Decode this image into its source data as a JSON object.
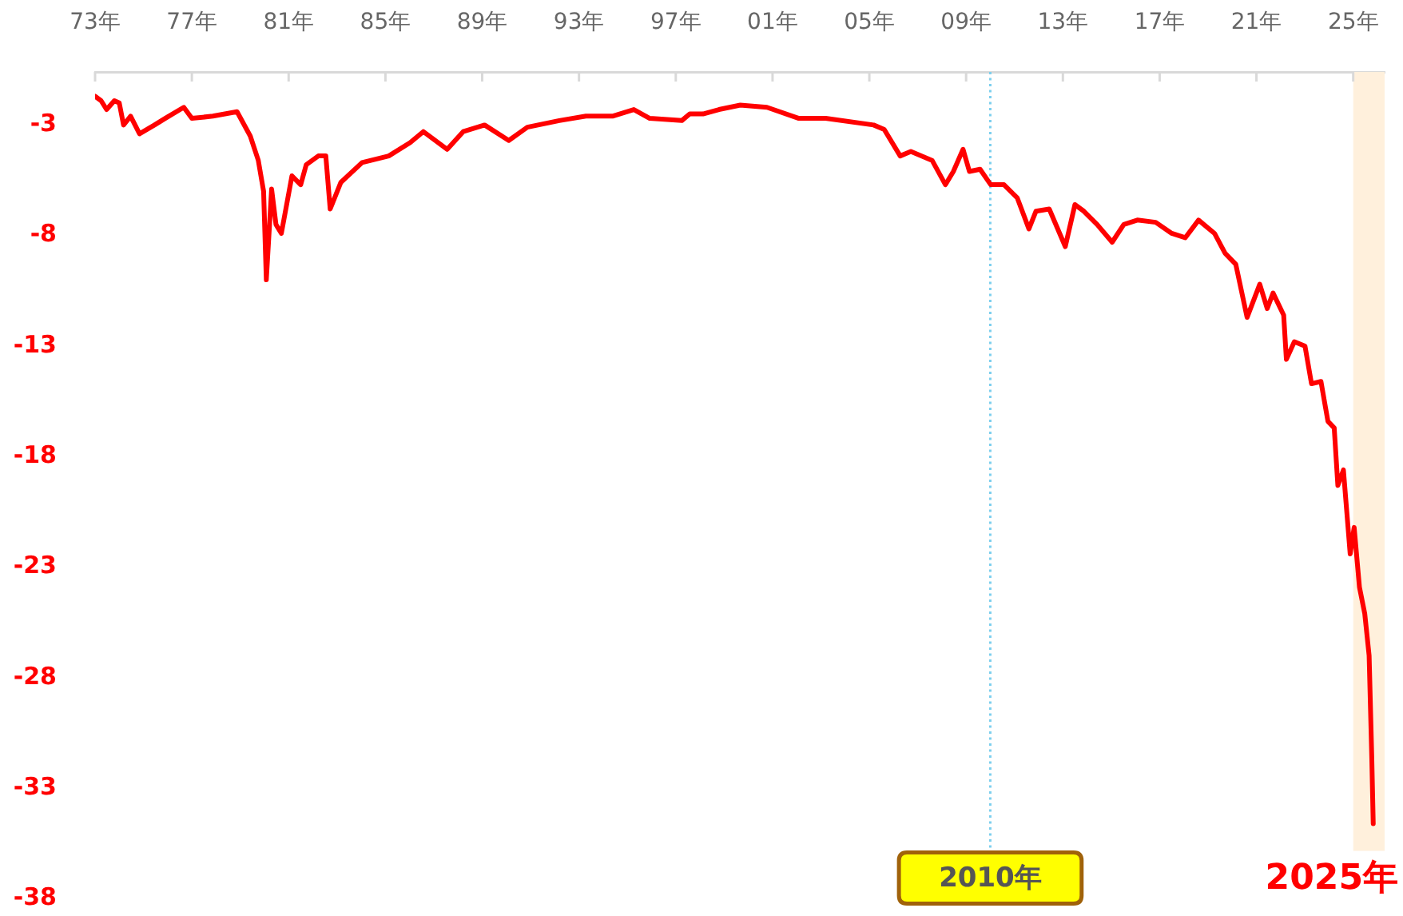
{
  "chart_data": {
    "type": "line",
    "x": [
      "1973-01-01",
      "1973-04-02",
      "1973-06-24",
      "1973-10-19",
      "1974-01-01",
      "1974-03-07",
      "1974-06-21",
      "1974-11-03",
      "1975-06-17",
      "1975-11-25",
      "1976-09-01",
      "1977-01-01",
      "1977-11-14",
      "1978-11-14",
      "1979-06-02",
      "1979-10-01",
      "1979-12-20",
      "1980-01-30",
      "1980-04-19",
      "1980-06-24",
      "1980-09-13",
      "1981-02-20",
      "1981-07-02",
      "1981-09-23",
      "1982-03-25",
      "1982-07-16",
      "1982-09-20",
      "1983-02-27",
      "1984-01-15",
      "1985-02-20",
      "1986-01-08",
      "1986-07-27",
      "1987-07-23",
      "1988-03-20",
      "1989-02-06",
      "1990-02-06",
      "1990-11-14",
      "1992-03-10",
      "1993-04-16",
      "1994-05-22",
      "1995-04-09",
      "1995-12-05",
      "1997-04-02",
      "1997-07-31",
      "1998-02-16",
      "1998-10-15",
      "1999-09-02",
      "2000-10-08",
      "2002-02-02",
      "2003-03-14",
      "2005-03-07",
      "2005-08-14",
      "2006-04-12",
      "2006-09-20",
      "2007-08-07",
      "2008-02-24",
      "2008-06-23",
      "2008-11-16",
      "2009-02-20",
      "2009-07-31",
      "2010-01-08",
      "2010-07-27",
      "2011-02-13",
      "2011-08-07",
      "2011-11-21",
      "2012-06-09",
      "2013-02-06",
      "2013-07-02",
      "2013-11-14",
      "2014-06-02",
      "2015-01-15",
      "2015-07-09",
      "2016-01-30",
      "2016-11-02",
      "2017-07-02",
      "2018-01-22",
      "2018-08-11",
      "2019-04-09",
      "2019-09-16",
      "2020-02-24",
      "2020-08-13",
      "2021-02-20",
      "2021-06-13",
      "2021-09-09",
      "2022-02-16",
      "2022-03-29",
      "2022-07-27",
      "2023-01-04",
      "2023-04-12",
      "2023-09-02",
      "2023-12-16",
      "2024-03-20",
      "2024-05-14",
      "2024-08-06",
      "2024-11-16",
      "2025-01-15",
      "2025-04-05",
      "2025-06-24",
      "2025-08-29",
      "2025-10-08",
      "2025-10-30"
    ],
    "series": [
      {
        "color": "#ff0000",
        "values": [
          -1.7,
          -1.9,
          -2.3,
          -1.9,
          -2.0,
          -3.0,
          -2.6,
          -3.4,
          -3.0,
          -2.7,
          -2.2,
          -2.7,
          -2.6,
          -2.4,
          -3.5,
          -4.6,
          -6.0,
          -10.0,
          -5.9,
          -7.5,
          -7.9,
          -5.3,
          -5.7,
          -4.8,
          -4.4,
          -4.4,
          -6.8,
          -5.6,
          -4.7,
          -4.4,
          -3.8,
          -3.3,
          -4.1,
          -3.3,
          -3.0,
          -3.7,
          -3.1,
          -2.8,
          -2.6,
          -2.6,
          -2.3,
          -2.7,
          -2.8,
          -2.5,
          -2.5,
          -2.3,
          -2.1,
          -2.2,
          -2.7,
          -2.7,
          -3.0,
          -3.2,
          -4.4,
          -4.2,
          -4.6,
          -5.7,
          -5.1,
          -4.1,
          -5.1,
          -5.0,
          -5.7,
          -5.7,
          -6.3,
          -7.7,
          -6.9,
          -6.8,
          -8.5,
          -6.6,
          -6.9,
          -7.5,
          -8.3,
          -7.5,
          -7.3,
          -7.4,
          -7.9,
          -8.1,
          -7.3,
          -7.9,
          -8.8,
          -9.3,
          -11.7,
          -10.2,
          -11.3,
          -10.6,
          -11.6,
          -13.6,
          -12.8,
          -13.0,
          -14.7,
          -14.6,
          -16.4,
          -16.7,
          -19.3,
          -18.6,
          -22.4,
          -21.2,
          -23.9,
          -25.1,
          -27.0,
          -31.6,
          -34.6
        ]
      }
    ],
    "xlim": [
      "1973-01-01",
      "2026-04-20"
    ],
    "xticks": [
      {
        "value": "1973",
        "label": "73年"
      },
      {
        "value": "1977",
        "label": "77年"
      },
      {
        "value": "1981",
        "label": "81年"
      },
      {
        "value": "1985",
        "label": "85年"
      },
      {
        "value": "1989",
        "label": "89年"
      },
      {
        "value": "1993",
        "label": "93年"
      },
      {
        "value": "1997",
        "label": "97年"
      },
      {
        "value": "2001",
        "label": "01年"
      },
      {
        "value": "2005",
        "label": "05年"
      },
      {
        "value": "2009",
        "label": "09年"
      },
      {
        "value": "2013",
        "label": "13年"
      },
      {
        "value": "2017",
        "label": "17年"
      },
      {
        "value": "2021",
        "label": "21年"
      },
      {
        "value": "2025",
        "label": "25年"
      }
    ],
    "ylim": [
      -38,
      -0.6
    ],
    "yticks": [
      -3,
      -8,
      -13,
      -18,
      -23,
      -28,
      -33,
      -38
    ],
    "legend": false,
    "marker": "none",
    "ref_lines": [
      {
        "axis": "x",
        "value": "2010",
        "label": "2010年",
        "color": "#7ccfee",
        "line_style": "dotted"
      }
    ],
    "bands": [
      {
        "axis": "x",
        "from": "2025",
        "to": "2026-04-20",
        "label": "2025年",
        "color": "#fff0dc"
      }
    ]
  }
}
